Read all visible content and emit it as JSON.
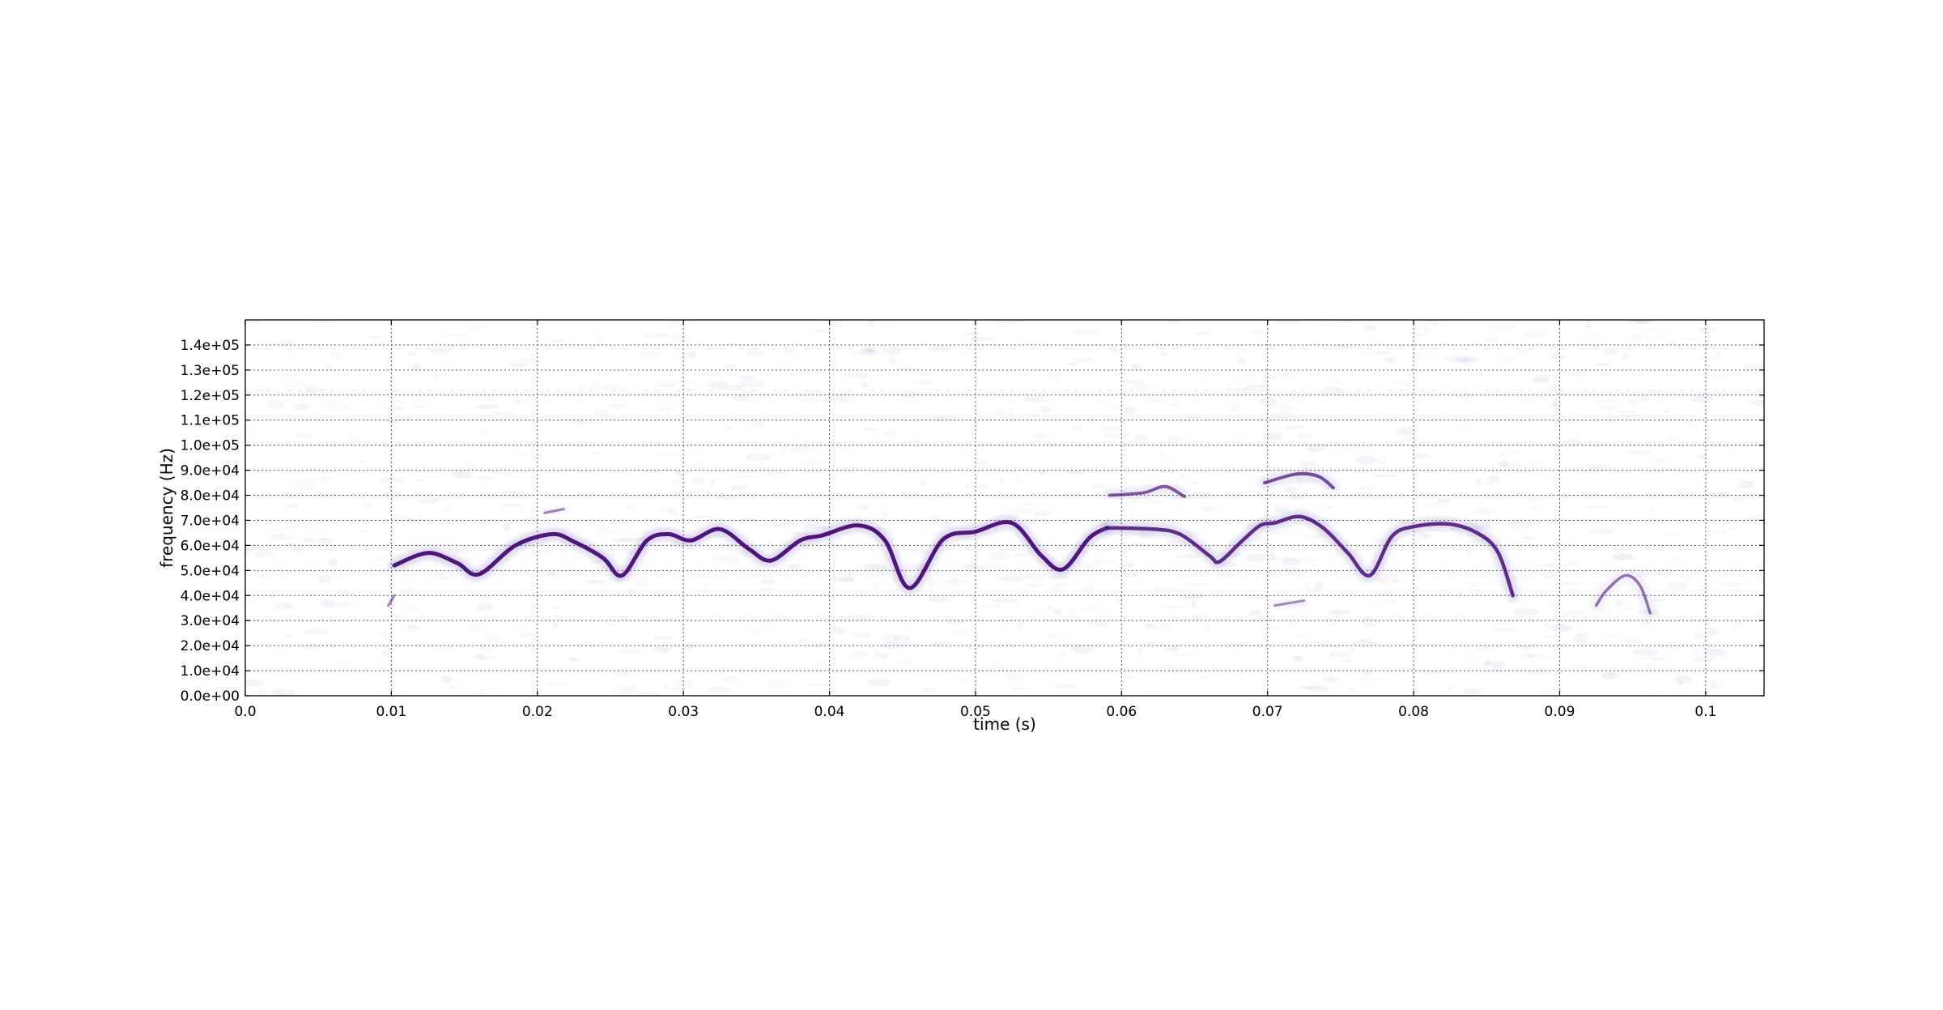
{
  "chart_data": {
    "type": "heatmap",
    "subtype": "spectrogram",
    "title": "",
    "xlabel": "time (s)",
    "ylabel": "frequency (Hz)",
    "xlim": [
      0.0,
      0.104
    ],
    "ylim": [
      0,
      150000
    ],
    "grid": true,
    "grid_style": "dotted",
    "colormap": "white-to-purple",
    "accent_color": "#3f0071",
    "x_ticks": [
      0.0,
      0.01,
      0.02,
      0.03,
      0.04,
      0.05,
      0.06,
      0.07,
      0.08,
      0.09,
      0.1
    ],
    "x_tick_labels": [
      "0.0",
      "0.01",
      "0.02",
      "0.03",
      "0.04",
      "0.05",
      "0.06",
      "0.07",
      "0.08",
      "0.09",
      "0.1"
    ],
    "y_ticks": [
      0,
      10000,
      20000,
      30000,
      40000,
      50000,
      60000,
      70000,
      80000,
      90000,
      100000,
      110000,
      120000,
      130000,
      140000
    ],
    "y_tick_labels": [
      "0.0e+00",
      "1.0e+04",
      "2.0e+04",
      "3.0e+04",
      "4.0e+04",
      "5.0e+04",
      "6.0e+04",
      "7.0e+04",
      "8.0e+04",
      "9.0e+04",
      "1.0e+05",
      "1.1e+05",
      "1.2e+05",
      "1.3e+05",
      "1.4e+05"
    ],
    "series": [
      {
        "intensity": 1.0,
        "points": [
          [
            0.0102,
            52000
          ],
          [
            0.0125,
            57000
          ],
          [
            0.0145,
            53000
          ],
          [
            0.016,
            48500
          ],
          [
            0.0185,
            60000
          ],
          [
            0.021,
            64500
          ],
          [
            0.0225,
            61500
          ],
          [
            0.0245,
            55000
          ],
          [
            0.0258,
            48000
          ],
          [
            0.0275,
            62000
          ],
          [
            0.029,
            64500
          ],
          [
            0.0305,
            62000
          ],
          [
            0.0325,
            66500
          ],
          [
            0.0345,
            58500
          ],
          [
            0.036,
            54000
          ],
          [
            0.038,
            62000
          ],
          [
            0.0395,
            64000
          ],
          [
            0.042,
            68000
          ],
          [
            0.0438,
            62000
          ],
          [
            0.0455,
            43000
          ],
          [
            0.0478,
            62500
          ],
          [
            0.05,
            65500
          ],
          [
            0.0525,
            69000
          ],
          [
            0.0545,
            56000
          ],
          [
            0.056,
            50500
          ],
          [
            0.0578,
            63000
          ],
          [
            0.059,
            67000
          ]
        ]
      },
      {
        "intensity": 0.85,
        "points": [
          [
            0.059,
            67000
          ],
          [
            0.0622,
            66500
          ],
          [
            0.064,
            64500
          ],
          [
            0.066,
            56000
          ],
          [
            0.0667,
            53500
          ],
          [
            0.0682,
            61500
          ],
          [
            0.0695,
            68000
          ],
          [
            0.0705,
            69000
          ],
          [
            0.0722,
            71500
          ],
          [
            0.0738,
            67000
          ],
          [
            0.0755,
            57000
          ],
          [
            0.077,
            48000
          ],
          [
            0.0785,
            63500
          ],
          [
            0.08,
            67500
          ],
          [
            0.0825,
            68500
          ],
          [
            0.0845,
            64500
          ],
          [
            0.0858,
            57000
          ],
          [
            0.0868,
            40000
          ]
        ]
      },
      {
        "intensity": 0.6,
        "points": [
          [
            0.0592,
            80000
          ],
          [
            0.0615,
            81000
          ],
          [
            0.063,
            83500
          ],
          [
            0.0643,
            79500
          ]
        ]
      },
      {
        "intensity": 0.65,
        "points": [
          [
            0.0698,
            85000
          ],
          [
            0.072,
            88500
          ],
          [
            0.0735,
            87500
          ],
          [
            0.0745,
            83000
          ]
        ]
      },
      {
        "intensity": 0.45,
        "points": [
          [
            0.0925,
            36000
          ],
          [
            0.0932,
            42000
          ],
          [
            0.0945,
            48000
          ],
          [
            0.0955,
            44000
          ],
          [
            0.0962,
            33000
          ]
        ]
      },
      {
        "intensity": 0.35,
        "points": [
          [
            0.0098,
            36000
          ],
          [
            0.0102,
            40000
          ]
        ]
      },
      {
        "intensity": 0.35,
        "points": [
          [
            0.0205,
            73000
          ],
          [
            0.0218,
            74500
          ]
        ]
      },
      {
        "intensity": 0.3,
        "points": [
          [
            0.0705,
            36000
          ],
          [
            0.0725,
            38000
          ]
        ]
      }
    ]
  }
}
